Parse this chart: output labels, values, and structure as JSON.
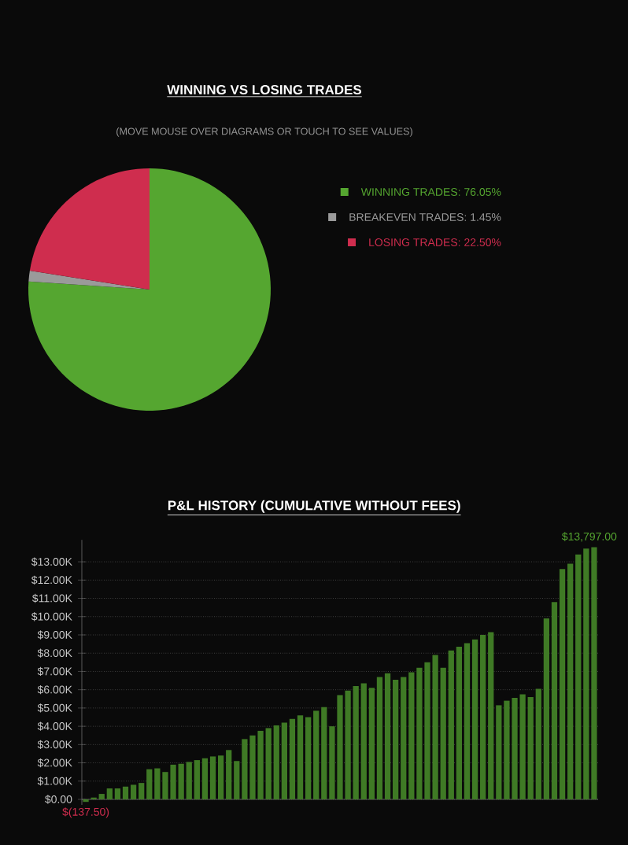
{
  "chart_data": [
    {
      "type": "pie",
      "title": "WINNING VS LOSING TRADES",
      "subtitle": "(MOVE MOUSE OVER DIAGRAMS OR TOUCH TO SEE VALUES)",
      "categories": [
        "WINNING TRADES: 76.05%",
        "BREAKEVEN TRADES: 1.45%",
        "LOSING TRADES: 22.50%"
      ],
      "values": [
        76.05,
        1.45,
        22.5
      ],
      "colors": [
        "#55a630",
        "#9a9a9a",
        "#cf2d4e"
      ],
      "legend": "right"
    },
    {
      "type": "bar",
      "title": "P&L HISTORY (CUMULATIVE WITHOUT FEES)",
      "color": "#3f7a25",
      "grid": "y",
      "ylim": [
        -300,
        14200
      ],
      "yticks": [
        {
          "value": 0,
          "label": "$0.00"
        },
        {
          "value": 1000,
          "label": "$1.00K"
        },
        {
          "value": 2000,
          "label": "$2.00K"
        },
        {
          "value": 3000,
          "label": "$3.00K"
        },
        {
          "value": 4000,
          "label": "$4.00K"
        },
        {
          "value": 5000,
          "label": "$5.00K"
        },
        {
          "value": 6000,
          "label": "$6.00K"
        },
        {
          "value": 7000,
          "label": "$7.00K"
        },
        {
          "value": 8000,
          "label": "$8.00K"
        },
        {
          "value": 9000,
          "label": "$9.00K"
        },
        {
          "value": 10000,
          "label": "$10.00K"
        },
        {
          "value": 11000,
          "label": "$11.00K"
        },
        {
          "value": 12000,
          "label": "$12.00K"
        },
        {
          "value": 13000,
          "label": "$13.00K"
        }
      ],
      "categories": [
        null,
        null,
        null,
        null,
        null,
        null,
        null,
        null,
        null,
        null,
        null,
        null,
        null,
        null,
        null,
        null,
        null,
        null,
        null,
        null,
        null,
        null,
        null,
        null,
        null,
        null,
        null,
        null,
        null,
        null,
        null,
        null,
        null,
        null,
        null,
        null,
        null,
        null,
        null,
        null,
        null,
        null,
        null,
        null,
        null,
        null,
        null,
        null,
        null,
        null,
        null,
        null,
        null,
        null,
        null,
        null,
        null,
        null,
        null,
        null,
        null,
        null,
        null,
        null,
        null
      ],
      "values": [
        -137.5,
        100,
        300,
        600,
        600,
        700,
        800,
        900,
        1650,
        1700,
        1500,
        1900,
        1950,
        2050,
        2150,
        2250,
        2350,
        2400,
        2700,
        2100,
        3300,
        3500,
        3750,
        3900,
        4050,
        4200,
        4400,
        4600,
        4500,
        4850,
        5050,
        4000,
        5700,
        5950,
        6200,
        6350,
        6100,
        6700,
        6900,
        6550,
        6700,
        6950,
        7200,
        7500,
        7900,
        7200,
        8150,
        8350,
        8550,
        8750,
        9000,
        9150,
        5150,
        5400,
        5550,
        5750,
        5600,
        6050,
        9900,
        10800,
        12600,
        12900,
        13400,
        13720,
        13797
      ],
      "value_labels": [
        "$(137.50)",
        null,
        null,
        null,
        null,
        null,
        null,
        null,
        null,
        null,
        null,
        null,
        null,
        null,
        null,
        null,
        null,
        null,
        null,
        null,
        null,
        null,
        null,
        null,
        null,
        null,
        null,
        null,
        null,
        null,
        null,
        null,
        null,
        null,
        null,
        null,
        null,
        null,
        null,
        null,
        null,
        null,
        null,
        null,
        null,
        null,
        null,
        null,
        null,
        null,
        null,
        null,
        null,
        null,
        null,
        null,
        null,
        null,
        null,
        null,
        null,
        null,
        null,
        null,
        "$13,797.00"
      ]
    }
  ]
}
